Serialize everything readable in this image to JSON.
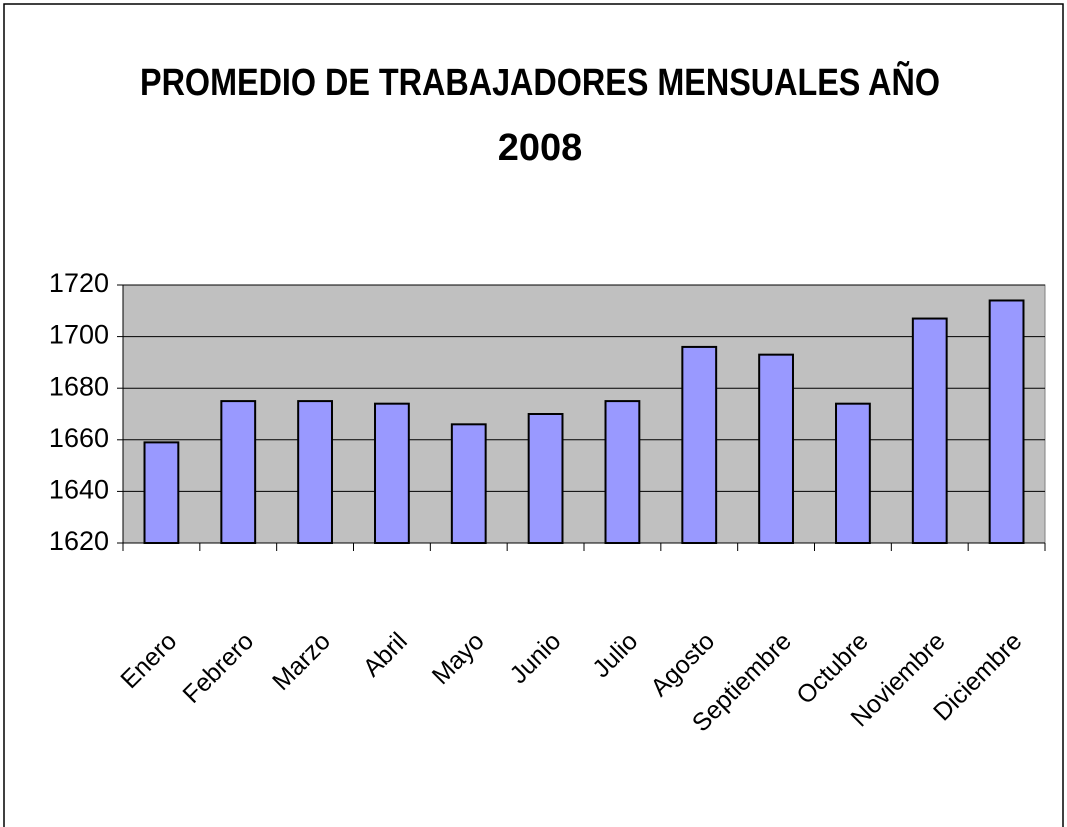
{
  "chart_data": {
    "type": "bar",
    "title": "PROMEDIO DE TRABAJADORES MENSUALES AÑO 2008",
    "categories": [
      "Enero",
      "Febrero",
      "Marzo",
      "Abril",
      "Mayo",
      "Junio",
      "Julio",
      "Agosto",
      "Septiembre",
      "Octubre",
      "Noviembre",
      "Diciembre"
    ],
    "values": [
      1659,
      1675,
      1675,
      1674,
      1666,
      1670,
      1675,
      1696,
      1693,
      1674,
      1707,
      1714
    ],
    "color": "#9999ff",
    "ylim": [
      1620,
      1720
    ],
    "yticks": [
      1620,
      1640,
      1660,
      1680,
      1700,
      1720
    ],
    "grid": true
  }
}
